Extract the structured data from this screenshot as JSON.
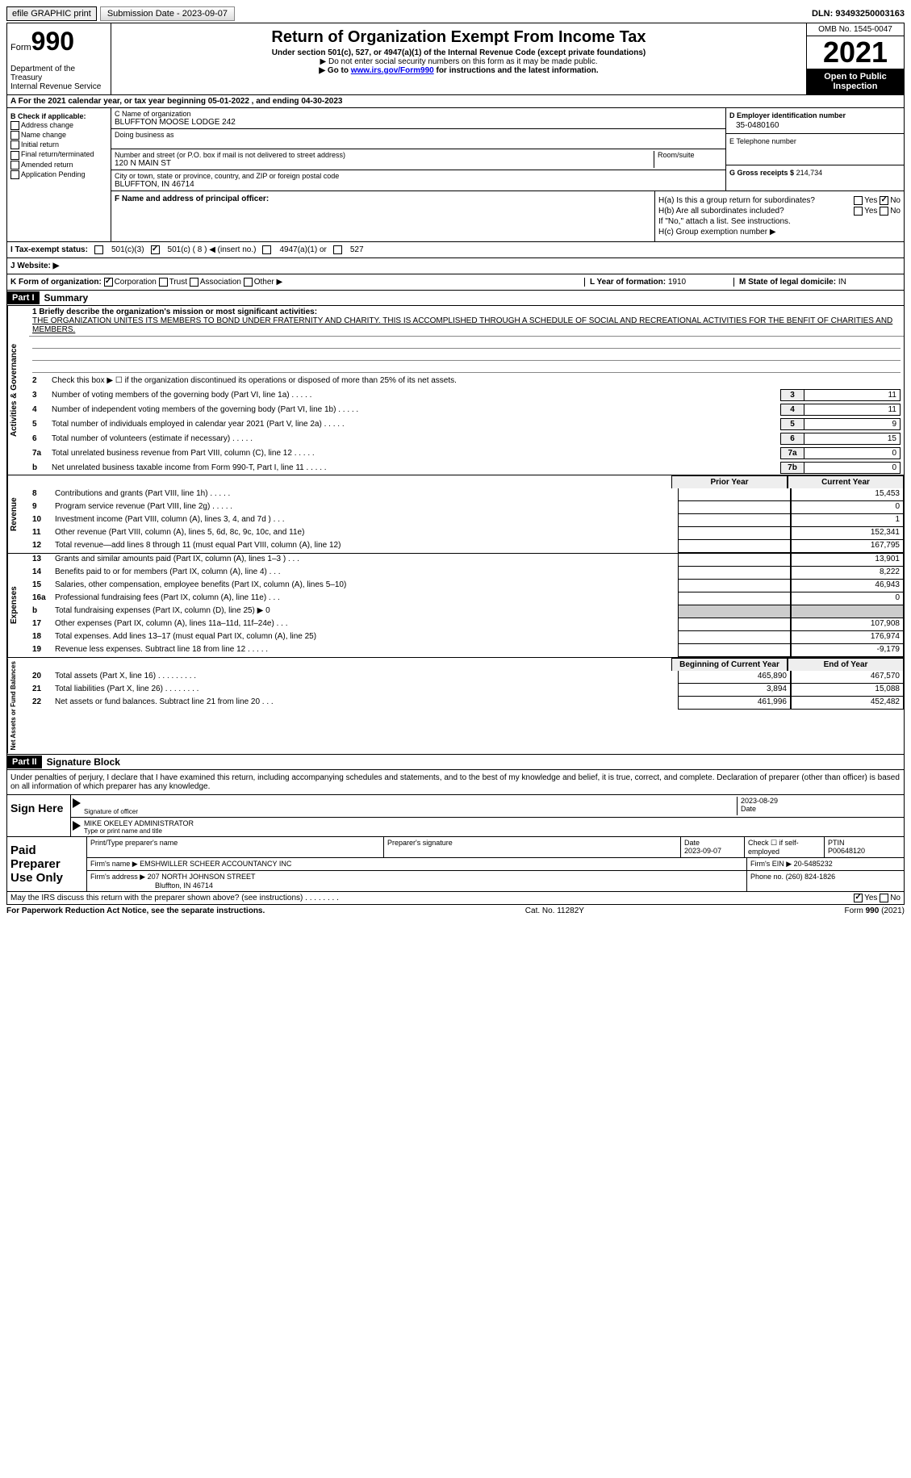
{
  "topbar": {
    "efile": "efile GRAPHIC print",
    "submission": "Submission Date - 2023-09-07",
    "dln": "DLN: 93493250003163"
  },
  "header": {
    "form_label": "Form",
    "form_number": "990",
    "dept": "Department of the Treasury",
    "irs": "Internal Revenue Service",
    "title": "Return of Organization Exempt From Income Tax",
    "subtitle": "Under section 501(c), 527, or 4947(a)(1) of the Internal Revenue Code (except private foundations)",
    "note1": "▶ Do not enter social security numbers on this form as it may be made public.",
    "note2_pre": "▶ Go to ",
    "note2_link": "www.irs.gov/Form990",
    "note2_post": " for instructions and the latest information.",
    "omb": "OMB No. 1545-0047",
    "year": "2021",
    "inspection": "Open to Public Inspection"
  },
  "row_a": "A For the 2021 calendar year, or tax year beginning 05-01-2022   , and ending 04-30-2023",
  "section_b": {
    "label": "B Check if applicable:",
    "opts": [
      "Address change",
      "Name change",
      "Initial return",
      "Final return/terminated",
      "Amended return",
      "Application Pending"
    ]
  },
  "section_c": {
    "name_label": "C Name of organization",
    "name": "BLUFFTON MOOSE LODGE 242",
    "dba_label": "Doing business as",
    "addr_label": "Number and street (or P.O. box if mail is not delivered to street address)",
    "room_label": "Room/suite",
    "addr": "120 N MAIN ST",
    "city_label": "City or town, state or province, country, and ZIP or foreign postal code",
    "city": "BLUFFTON, IN  46714"
  },
  "section_d": {
    "ein_label": "D Employer identification number",
    "ein": "35-0480160",
    "tel_label": "E Telephone number",
    "gross_label": "G Gross receipts $",
    "gross": "214,734"
  },
  "section_f": {
    "label": "F  Name and address of principal officer:"
  },
  "section_h": {
    "a_label": "H(a)  Is this a group return for subordinates?",
    "a_yes": "Yes",
    "a_no": "No",
    "b_label": "H(b)  Are all subordinates included?",
    "b_note": "If \"No,\" attach a list. See instructions.",
    "c_label": "H(c)  Group exemption number ▶"
  },
  "section_i": {
    "label": "I  Tax-exempt status:",
    "o1": "501(c)(3)",
    "o2": "501(c) ( 8 ) ◀ (insert no.)",
    "o3": "4947(a)(1) or",
    "o4": "527"
  },
  "section_j": {
    "label": "J  Website: ▶"
  },
  "section_k": {
    "label": "K Form of organization:",
    "opts": [
      "Corporation",
      "Trust",
      "Association",
      "Other ▶"
    ],
    "l_label": "L Year of formation:",
    "l_val": "1910",
    "m_label": "M State of legal domicile:",
    "m_val": "IN"
  },
  "part1": {
    "header": "Part I",
    "title": "Summary",
    "line1_label": "1  Briefly describe the organization's mission or most significant activities:",
    "mission": "THE ORGANIZATION UNITES ITS MEMBERS TO BOND UNDER FRATERNITY AND CHARITY. THIS IS ACCOMPLISHED THROUGH A SCHEDULE OF SOCIAL AND RECREATIONAL ACTIVITIES FOR THE BENFIT OF CHARITIES AND MEMBERS.",
    "line2": "Check this box ▶ ☐  if the organization discontinued its operations or disposed of more than 25% of its net assets.",
    "lines_ag": [
      {
        "n": "3",
        "d": "Number of voting members of the governing body (Part VI, line 1a)",
        "b": "3",
        "v": "11"
      },
      {
        "n": "4",
        "d": "Number of independent voting members of the governing body (Part VI, line 1b)",
        "b": "4",
        "v": "11"
      },
      {
        "n": "5",
        "d": "Total number of individuals employed in calendar year 2021 (Part V, line 2a)",
        "b": "5",
        "v": "9"
      },
      {
        "n": "6",
        "d": "Total number of volunteers (estimate if necessary)",
        "b": "6",
        "v": "15"
      },
      {
        "n": "7a",
        "d": "Total unrelated business revenue from Part VIII, column (C), line 12",
        "b": "7a",
        "v": "0"
      },
      {
        "n": "b",
        "d": "Net unrelated business taxable income from Form 990-T, Part I, line 11",
        "b": "7b",
        "v": "0"
      }
    ],
    "col_prior": "Prior Year",
    "col_current": "Current Year",
    "revenue": [
      {
        "n": "8",
        "d": "Contributions and grants (Part VIII, line 1h)   .    .    .    .    .",
        "p": "",
        "c": "15,453"
      },
      {
        "n": "9",
        "d": "Program service revenue (Part VIII, line 2g)   .    .    .    .    .",
        "p": "",
        "c": "0"
      },
      {
        "n": "10",
        "d": "Investment income (Part VIII, column (A), lines 3, 4, and 7d )   .    .    .",
        "p": "",
        "c": "1"
      },
      {
        "n": "11",
        "d": "Other revenue (Part VIII, column (A), lines 5, 6d, 8c, 9c, 10c, and 11e)",
        "p": "",
        "c": "152,341"
      },
      {
        "n": "12",
        "d": "Total revenue—add lines 8 through 11 (must equal Part VIII, column (A), line 12)",
        "p": "",
        "c": "167,795"
      }
    ],
    "expenses": [
      {
        "n": "13",
        "d": "Grants and similar amounts paid (Part IX, column (A), lines 1–3 )   .    .    .",
        "p": "",
        "c": "13,901"
      },
      {
        "n": "14",
        "d": "Benefits paid to or for members (Part IX, column (A), line 4)   .    .    .",
        "p": "",
        "c": "8,222"
      },
      {
        "n": "15",
        "d": "Salaries, other compensation, employee benefits (Part IX, column (A), lines 5–10)",
        "p": "",
        "c": "46,943"
      },
      {
        "n": "16a",
        "d": "Professional fundraising fees (Part IX, column (A), line 11e)   .    .    .",
        "p": "",
        "c": "0"
      },
      {
        "n": "b",
        "d": "Total fundraising expenses (Part IX, column (D), line 25) ▶ 0",
        "p": "shaded",
        "c": "shaded"
      },
      {
        "n": "17",
        "d": "Other expenses (Part IX, column (A), lines 11a–11d, 11f–24e)   .    .    .",
        "p": "",
        "c": "107,908"
      },
      {
        "n": "18",
        "d": "Total expenses. Add lines 13–17 (must equal Part IX, column (A), line 25)",
        "p": "",
        "c": "176,974"
      },
      {
        "n": "19",
        "d": "Revenue less expenses. Subtract line 18 from line 12   .    .    .    .    .",
        "p": "",
        "c": "-9,179"
      }
    ],
    "col_begin": "Beginning of Current Year",
    "col_end": "End of Year",
    "netassets": [
      {
        "n": "20",
        "d": "Total assets (Part X, line 16)   .    .    .    .    .    .    .    .    .",
        "p": "465,890",
        "c": "467,570"
      },
      {
        "n": "21",
        "d": "Total liabilities (Part X, line 26)   .    .    .    .    .    .    .    .",
        "p": "3,894",
        "c": "15,088"
      },
      {
        "n": "22",
        "d": "Net assets or fund balances. Subtract line 21 from line 20   .    .    .",
        "p": "461,996",
        "c": "452,482"
      }
    ],
    "vtab_ag": "Activities & Governance",
    "vtab_rev": "Revenue",
    "vtab_exp": "Expenses",
    "vtab_na": "Net Assets or Fund Balances"
  },
  "part2": {
    "header": "Part II",
    "title": "Signature Block",
    "penalties": "Under penalties of perjury, I declare that I have examined this return, including accompanying schedules and statements, and to the best of my knowledge and belief, it is true, correct, and complete. Declaration of preparer (other than officer) is based on all information of which preparer has any knowledge.",
    "sign_here": "Sign Here",
    "sig_officer": "Signature of officer",
    "sig_date": "2023-08-29",
    "date_lbl": "Date",
    "name_title": "MIKE OKELEY  ADMINISTRATOR",
    "name_lbl": "Type or print name and title",
    "paid_label": "Paid Preparer Use Only",
    "prep_name_lbl": "Print/Type preparer's name",
    "prep_sig_lbl": "Preparer's signature",
    "prep_date_lbl": "Date",
    "prep_date": "2023-09-07",
    "check_self": "Check ☐ if self-employed",
    "ptin_lbl": "PTIN",
    "ptin": "P00648120",
    "firm_name_lbl": "Firm's name    ▶",
    "firm_name": "EMSHWILLER SCHEER ACCOUNTANCY INC",
    "firm_ein_lbl": "Firm's EIN ▶",
    "firm_ein": "20-5485232",
    "firm_addr_lbl": "Firm's address ▶",
    "firm_addr1": "207 NORTH JOHNSON STREET",
    "firm_addr2": "Bluffton, IN  46714",
    "firm_phone_lbl": "Phone no.",
    "firm_phone": "(260) 824-1826",
    "discuss": "May the IRS discuss this return with the preparer shown above? (see instructions)   .    .    .    .    .    .    .    .",
    "discuss_yes": "Yes",
    "discuss_no": "No"
  },
  "footer": {
    "left": "For Paperwork Reduction Act Notice, see the separate instructions.",
    "mid": "Cat. No. 11282Y",
    "right": "Form 990 (2021)"
  }
}
